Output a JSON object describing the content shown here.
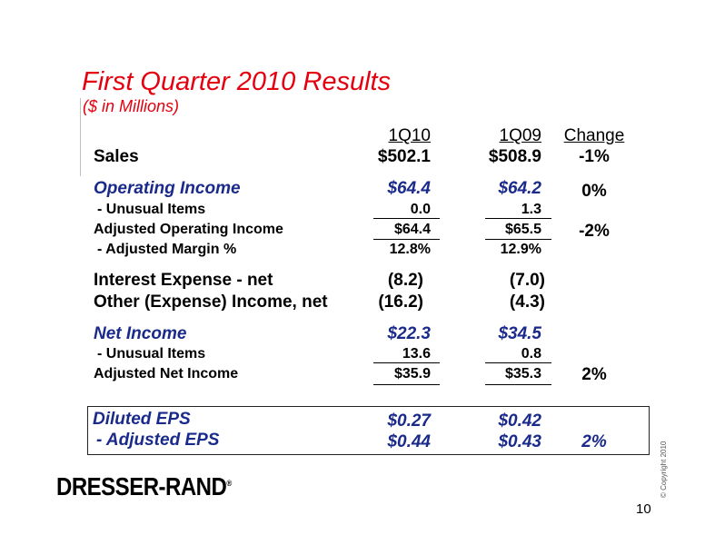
{
  "title": "First Quarter 2010 Results",
  "subtitle": "($ in Millions)",
  "headers": {
    "col1": "1Q10",
    "col2": "1Q09",
    "change": "Change"
  },
  "rows": {
    "sales": {
      "label": "Sales",
      "v1": "$502.1",
      "v2": "$508.9",
      "change": "-1%"
    },
    "operating_income": {
      "label": "Operating Income",
      "v1": "$64.4",
      "v2": "$64.2",
      "change": "0%"
    },
    "unusual_items_1": {
      "label": "-  Unusual Items",
      "v1": "0.0",
      "v2": "1.3"
    },
    "adjusted_operating_income": {
      "label": "Adjusted Operating Income",
      "v1": "$64.4",
      "v2": "$65.5",
      "change": "-2%"
    },
    "adjusted_margin": {
      "label": "- Adjusted Margin %",
      "v1": "12.8%",
      "v2": "12.9%"
    },
    "interest_expense": {
      "label": "Interest Expense - net",
      "v1": "(8.2)",
      "v2": "(7.0)"
    },
    "other_expense": {
      "label": "Other (Expense) Income, net",
      "v1": "(16.2)",
      "v2": "(4.3)"
    },
    "net_income": {
      "label": "Net Income",
      "v1": "$22.3",
      "v2": "$34.5"
    },
    "unusual_items_2": {
      "label": "-  Unusual Items",
      "v1": "13.6",
      "v2": "0.8"
    },
    "adjusted_net_income": {
      "label": "Adjusted Net Income",
      "v1": "$35.9",
      "v2": "$35.3",
      "change": "2%"
    },
    "diluted_eps": {
      "label": "Diluted EPS",
      "v1": "$0.27",
      "v2": "$0.42"
    },
    "adjusted_eps": {
      "label": "- Adjusted EPS",
      "v1": "$0.44",
      "v2": "$0.43",
      "change": "2%"
    }
  },
  "logo": "DRESSER-RAND",
  "logo_mark": "®",
  "copyright": "© Copyright 2010",
  "page_number": "10",
  "colors": {
    "title": "#e4000f",
    "highlight_label": "#1a2a8a"
  }
}
